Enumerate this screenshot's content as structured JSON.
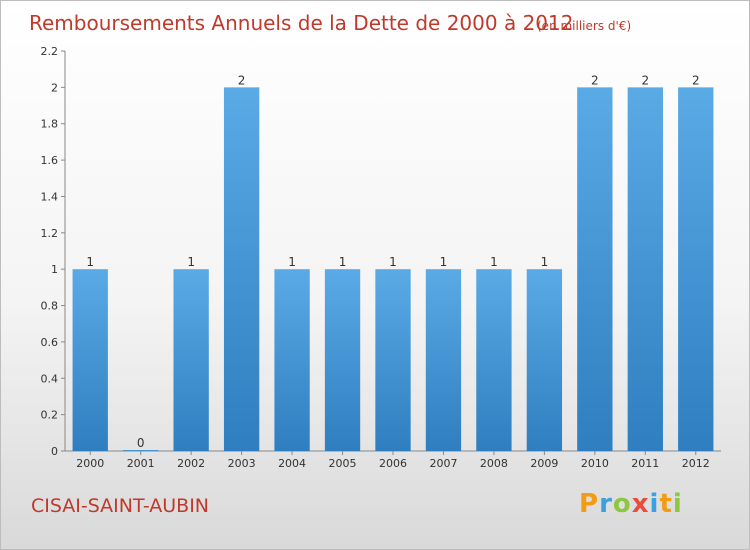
{
  "chart_data": {
    "type": "bar",
    "title": "Remboursements Annuels de la Dette de 2000 à 2012",
    "subtitle": "(en milliers d'€)",
    "categories": [
      "2000",
      "2001",
      "2002",
      "2003",
      "2004",
      "2005",
      "2006",
      "2007",
      "2008",
      "2009",
      "2010",
      "2011",
      "2012"
    ],
    "values": [
      1,
      0,
      1,
      2,
      1,
      1,
      1,
      1,
      1,
      1,
      2,
      2,
      2
    ],
    "data_labels": [
      "1",
      "0",
      "1",
      "2",
      "1",
      "1",
      "1",
      "1",
      "1",
      "1",
      "2",
      "2",
      "2"
    ],
    "yticks": [
      "0",
      "0.2",
      "0.4",
      "0.6",
      "0.8",
      "1",
      "1.2",
      "1.4",
      "1.6",
      "1.8",
      "2",
      "2.2"
    ],
    "ylim": [
      0,
      2.2
    ],
    "xlabel": "",
    "ylabel": "",
    "bar_color": "#2f7fc0",
    "bar_color_light": "#5aaae6"
  },
  "footer": {
    "commune": "CISAI-SAINT-AUBIN",
    "brand_letters": [
      "P",
      "r",
      "o",
      "x",
      "i",
      "t",
      "i"
    ],
    "brand_colors": [
      "#f39c12",
      "#3aa0e0",
      "#8dc63f",
      "#e74c3c",
      "#3aa0e0",
      "#f39c12",
      "#8dc63f"
    ]
  }
}
